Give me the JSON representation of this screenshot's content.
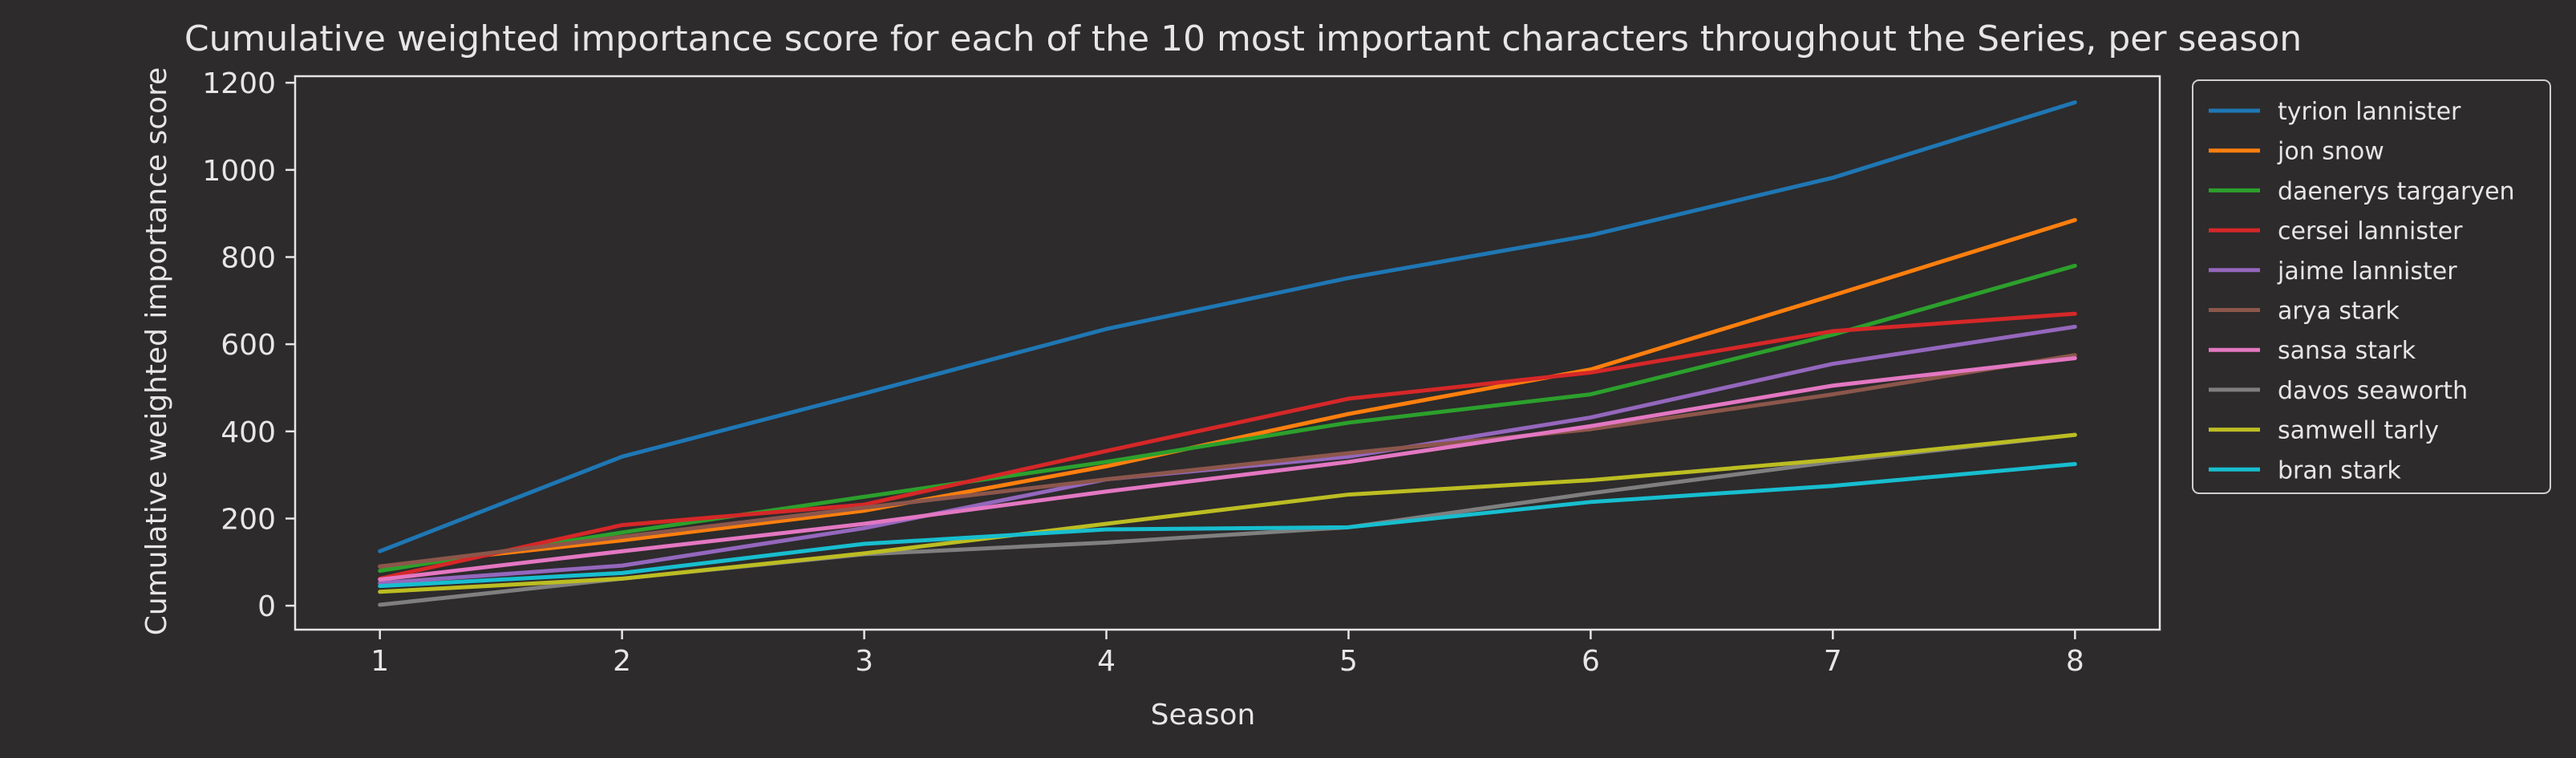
{
  "colors": {
    "background": "#2d2b2c",
    "foreground": "#e6e6e6",
    "legend_edge": "#cfcfcf"
  },
  "chart_data": {
    "type": "line",
    "title": "Cumulative weighted importance score for each of the 10 most important characters throughout the Series, per season",
    "xlabel": "Season",
    "ylabel": "Cumulative weighted importance score",
    "x": [
      1,
      2,
      3,
      4,
      5,
      6,
      7,
      8
    ],
    "xlim": [
      0.65,
      8.35
    ],
    "ylim": [
      -55,
      1215
    ],
    "yticks": [
      0,
      200,
      400,
      600,
      800,
      1000,
      1200
    ],
    "xticks": [
      1,
      2,
      3,
      4,
      5,
      6,
      7,
      8
    ],
    "grid": false,
    "legend_position": "outside-right",
    "series": [
      {
        "name": "tyrion lannister",
        "color": "#1f77b4",
        "values": [
          125,
          342,
          487,
          635,
          752,
          850,
          982,
          1155
        ]
      },
      {
        "name": "jon snow",
        "color": "#ff7f0e",
        "values": [
          90,
          150,
          218,
          320,
          440,
          542,
          712,
          885
        ]
      },
      {
        "name": "daenerys targaryen",
        "color": "#2ca02c",
        "values": [
          80,
          168,
          250,
          330,
          420,
          485,
          622,
          780
        ]
      },
      {
        "name": "cersei lannister",
        "color": "#d62728",
        "values": [
          62,
          185,
          232,
          355,
          475,
          535,
          630,
          670
        ]
      },
      {
        "name": "jaime lannister",
        "color": "#9467bd",
        "values": [
          52,
          92,
          178,
          290,
          342,
          432,
          555,
          640
        ]
      },
      {
        "name": "arya stark",
        "color": "#8c564b",
        "values": [
          90,
          158,
          225,
          290,
          350,
          405,
          485,
          575
        ]
      },
      {
        "name": "sansa stark",
        "color": "#e377c2",
        "values": [
          60,
          125,
          188,
          262,
          330,
          412,
          505,
          568
        ]
      },
      {
        "name": "davos seaworth",
        "color": "#7f7f7f",
        "values": [
          2,
          62,
          118,
          145,
          180,
          258,
          330,
          392
        ]
      },
      {
        "name": "samwell tarly",
        "color": "#bcbd22",
        "values": [
          32,
          62,
          120,
          188,
          255,
          288,
          335,
          392
        ]
      },
      {
        "name": "bran stark",
        "color": "#17becf",
        "values": [
          45,
          75,
          142,
          175,
          180,
          238,
          275,
          325
        ]
      }
    ]
  }
}
